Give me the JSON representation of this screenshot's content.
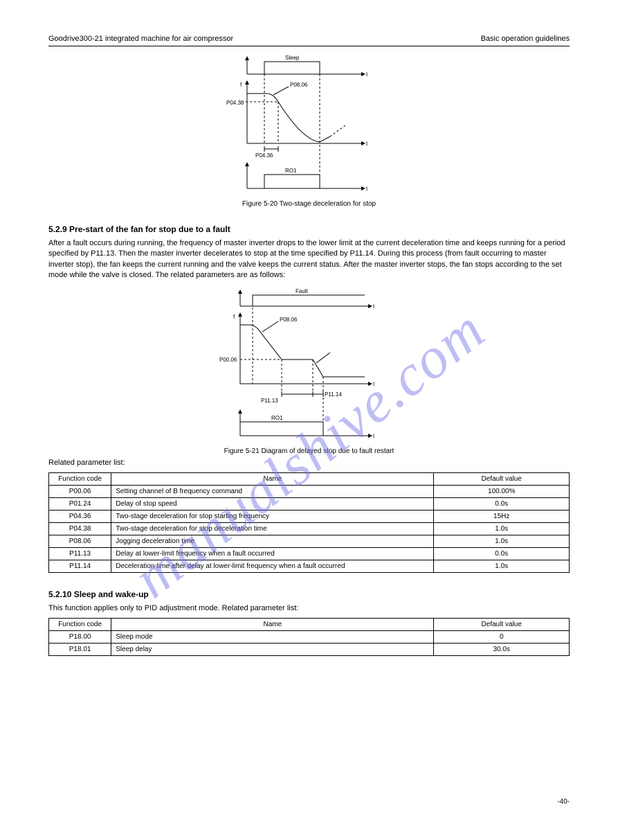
{
  "header": {
    "left": "Goodrive300-21 integrated machine for air compressor",
    "right": "Basic operation guidelines"
  },
  "watermark_text": "manualshive.com",
  "fig520": {
    "caption": "Figure 5-20 Two-stage deceleration for stop",
    "labels": {
      "top_axis": "t",
      "top_signal": "Sleep",
      "freq_axis_v": "f",
      "freq_axis_h": "t",
      "bottom_axis": "t",
      "bottom_signal": "RO1",
      "arc_label": "P08.06",
      "level_label": "P04.38",
      "span_label": "P04.36"
    }
  },
  "sec529": {
    "heading": "5.2.9 Pre-start of the fan for stop due to a fault",
    "para": "After a fault occurs during running, the frequency of master inverter drops to the lower limit at the current deceleration time and keeps running for a period specified by P11.13. Then the master inverter decelerates to stop at the time specified by P11.14. During this process (from fault occurring to master inverter stop), the fan keeps the current running and the valve keeps the current status. After the master inverter stops, the fan stops according to the set mode while the valve is closed. The related parameters are as follows:"
  },
  "fig521": {
    "caption": "Figure 5-21 Diagram of delayed stop due to fault restart",
    "labels": {
      "top_axis": "t",
      "top_signal": "Fault",
      "freq_axis_v": "f",
      "freq_axis_h": "t",
      "bottom_axis": "t",
      "bottom_signal": "RO1",
      "arc_label": "P08.06",
      "seg1_label": "P11.13",
      "seg2_label": "P11.14",
      "level_label": "P00.06"
    }
  },
  "related_heading": "Related parameter list:",
  "table1": {
    "header": {
      "code": "Function code",
      "name": "Name",
      "def": "Default value"
    },
    "rows": [
      {
        "code": "P00.06",
        "name": "Setting channel of B frequency command",
        "def": "100.00%"
      },
      {
        "code": "P01.24",
        "name": "Delay of stop speed",
        "def": "0.0s"
      },
      {
        "code": "P04.36",
        "name": "Two-stage deceleration for stop starting frequency",
        "def": "15Hz"
      },
      {
        "code": "P04.38",
        "name": "Two-stage deceleration for stop deceleration time",
        "def": "1.0s"
      },
      {
        "code": "P08.06",
        "name": "Jogging deceleration time",
        "def": "1.0s"
      },
      {
        "code": "P11.13",
        "name": "Delay at lower-limit frequency when a fault occurred",
        "def": "0.0s"
      },
      {
        "code": "P11.14",
        "name": "Deceleration time after delay at lower-limit frequency when a fault occurred",
        "def": "1.0s"
      }
    ]
  },
  "sec5210": {
    "heading": "5.2.10 Sleep and wake-up",
    "para": "This function applies only to PID adjustment mode. Related parameter list:"
  },
  "table2": {
    "header": {
      "code": "Function code",
      "name": "Name",
      "def": "Default value"
    },
    "rows": [
      {
        "code": "P18.00",
        "name": "Sleep mode",
        "def": "0"
      },
      {
        "code": "P18.01",
        "name": "Sleep delay",
        "def": "30.0s"
      }
    ]
  },
  "footer": {
    "left": "",
    "right": "-40-"
  },
  "colors": {
    "text": "#000000",
    "line": "#000000",
    "watermark": "rgba(110,110,230,0.45)",
    "bg": "#ffffff"
  }
}
